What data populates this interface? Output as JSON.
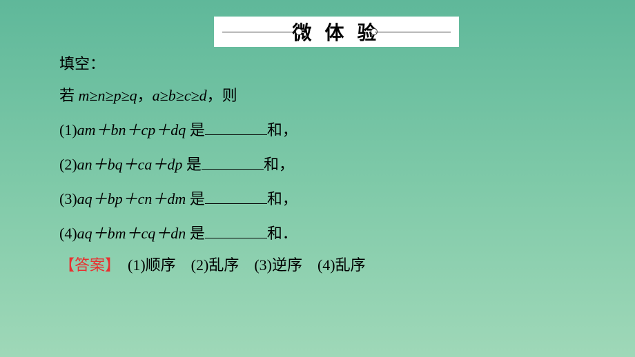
{
  "header": {
    "title": "微 体 验"
  },
  "content": {
    "prompt": "填空：",
    "condition_prefix": "若 ",
    "condition_var1": "m",
    "condition_ge1": "≥",
    "condition_var2": "n",
    "condition_ge2": "≥",
    "condition_var3": "p",
    "condition_ge3": "≥",
    "condition_var4": "q",
    "condition_comma": "，",
    "condition_var5": "a",
    "condition_ge4": "≥",
    "condition_var6": "b",
    "condition_ge5": "≥",
    "condition_var7": "c",
    "condition_ge6": "≥",
    "condition_var8": "d",
    "condition_suffix": "，则",
    "q1_num": "(1)",
    "q1_expr": "am＋bn＋cp＋dq",
    "q1_mid": " 是",
    "q1_suffix": "和，",
    "q2_num": "(2)",
    "q2_expr": "an＋bq＋ca＋dp",
    "q2_mid": " 是",
    "q2_suffix": "和，",
    "q3_num": "(3)",
    "q3_expr": "aq＋bp＋cn＋dm",
    "q3_mid": " 是",
    "q3_suffix": "和，",
    "q4_num": "(4)",
    "q4_expr": "aq＋bm＋cq＋dn",
    "q4_mid": " 是",
    "q4_suffix": "和．"
  },
  "answer": {
    "label": "【答案】",
    "text": "　(1)顺序　(2)乱序　(3)逆序　(4)乱序"
  },
  "colors": {
    "background_top": "#5fb89a",
    "background_bottom": "#9fd8b8",
    "header_bg": "#ffffff",
    "text": "#000000",
    "answer_label": "#e83030"
  }
}
